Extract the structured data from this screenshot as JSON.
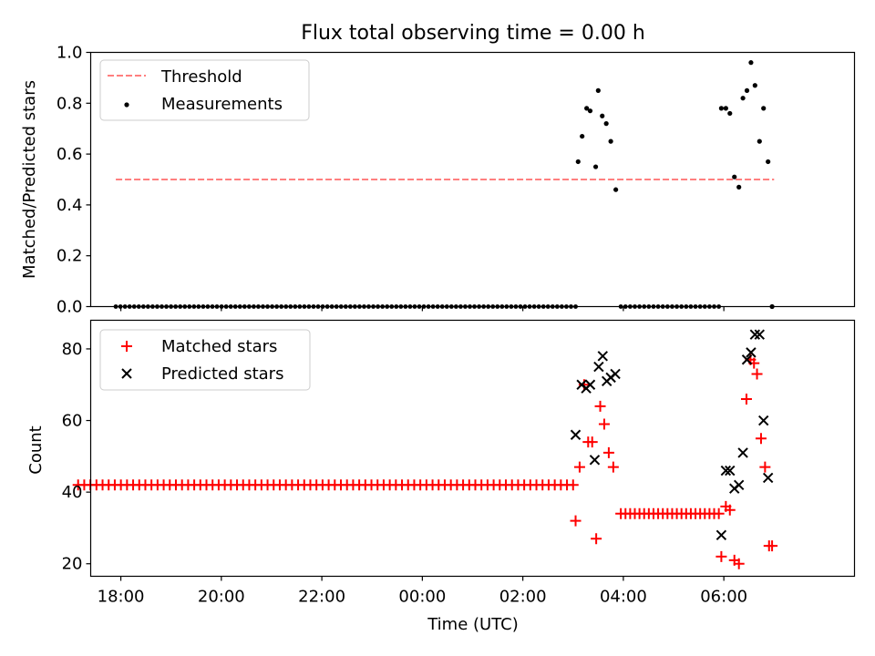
{
  "chart_data": [
    {
      "type": "scatter",
      "title": "Flux total observing time = 0.00 h",
      "xlabel": "",
      "ylabel": "Matched/Predicted stars",
      "xlim": [
        -6.6,
        8.6
      ],
      "ylim": [
        0.0,
        1.0
      ],
      "yticks": [
        "0.0",
        "0.2",
        "0.4",
        "0.6",
        "0.8",
        "1.0"
      ],
      "legend_position": "top-left",
      "legend": {
        "threshold": "Threshold",
        "measurements": "Measurements"
      },
      "threshold": {
        "value": 0.5,
        "x": [
          -6.1,
          7.0
        ],
        "color": "#ff7f7f"
      },
      "measurements": {
        "color": "#000000",
        "zero_runs": [
          {
            "x_start": -6.1,
            "x_end": 3.05,
            "count": 101
          },
          {
            "x_start": 3.95,
            "x_end": 5.9,
            "count": 22
          }
        ],
        "points": [
          {
            "x": 3.1,
            "y": 0.57
          },
          {
            "x": 3.18,
            "y": 0.67
          },
          {
            "x": 3.27,
            "y": 0.78
          },
          {
            "x": 3.34,
            "y": 0.77
          },
          {
            "x": 3.45,
            "y": 0.55
          },
          {
            "x": 3.5,
            "y": 0.85
          },
          {
            "x": 3.58,
            "y": 0.75
          },
          {
            "x": 3.66,
            "y": 0.72
          },
          {
            "x": 3.75,
            "y": 0.65
          },
          {
            "x": 3.85,
            "y": 0.46
          },
          {
            "x": 5.95,
            "y": 0.78
          },
          {
            "x": 6.04,
            "y": 0.78
          },
          {
            "x": 6.12,
            "y": 0.76
          },
          {
            "x": 6.21,
            "y": 0.51
          },
          {
            "x": 6.3,
            "y": 0.47
          },
          {
            "x": 6.38,
            "y": 0.82
          },
          {
            "x": 6.46,
            "y": 0.85
          },
          {
            "x": 6.54,
            "y": 0.96
          },
          {
            "x": 6.62,
            "y": 0.87
          },
          {
            "x": 6.71,
            "y": 0.65
          },
          {
            "x": 6.79,
            "y": 0.78
          },
          {
            "x": 6.88,
            "y": 0.57
          },
          {
            "x": 6.96,
            "y": 0.0
          }
        ]
      }
    },
    {
      "type": "scatter",
      "title": "",
      "xlabel": "Time (UTC)",
      "ylabel": "Count",
      "xlim": [
        -6.6,
        8.6
      ],
      "ylim": [
        16.5,
        88.0
      ],
      "yticks": [
        "20",
        "40",
        "60",
        "80"
      ],
      "xticks": [
        {
          "x": -6.0,
          "label": "18:00"
        },
        {
          "x": -4.0,
          "label": "20:00"
        },
        {
          "x": -2.0,
          "label": "22:00"
        },
        {
          "x": 0.0,
          "label": "00:00"
        },
        {
          "x": 2.0,
          "label": "02:00"
        },
        {
          "x": 4.0,
          "label": "04:00"
        },
        {
          "x": 6.0,
          "label": "06:00"
        }
      ],
      "legend_position": "top-left",
      "series": [
        {
          "name": "Matched stars",
          "marker": "plus",
          "color": "#ff0000",
          "runs": [
            {
              "x_start": -6.85,
              "x_end": 3.0,
              "count": 82,
              "y": 42
            },
            {
              "x_start": 3.95,
              "x_end": 5.9,
              "count": 22,
              "y": 34
            }
          ],
          "points": [
            {
              "x": 3.05,
              "y": 32
            },
            {
              "x": 3.13,
              "y": 47
            },
            {
              "x": 3.22,
              "y": 70
            },
            {
              "x": 3.3,
              "y": 54
            },
            {
              "x": 3.38,
              "y": 54
            },
            {
              "x": 3.46,
              "y": 27
            },
            {
              "x": 3.54,
              "y": 64
            },
            {
              "x": 3.62,
              "y": 59
            },
            {
              "x": 3.71,
              "y": 51
            },
            {
              "x": 3.8,
              "y": 47
            },
            {
              "x": 5.95,
              "y": 22
            },
            {
              "x": 6.04,
              "y": 36
            },
            {
              "x": 6.12,
              "y": 35
            },
            {
              "x": 6.21,
              "y": 21
            },
            {
              "x": 6.3,
              "y": 20
            },
            {
              "x": 6.45,
              "y": 66
            },
            {
              "x": 6.53,
              "y": 77
            },
            {
              "x": 6.6,
              "y": 76
            },
            {
              "x": 6.66,
              "y": 73
            },
            {
              "x": 6.74,
              "y": 55
            },
            {
              "x": 6.82,
              "y": 47
            },
            {
              "x": 6.9,
              "y": 25
            },
            {
              "x": 6.96,
              "y": 25
            }
          ]
        },
        {
          "name": "Predicted stars",
          "marker": "x",
          "color": "#000000",
          "points": [
            {
              "x": 3.05,
              "y": 56
            },
            {
              "x": 3.17,
              "y": 70
            },
            {
              "x": 3.26,
              "y": 69
            },
            {
              "x": 3.34,
              "y": 70
            },
            {
              "x": 3.43,
              "y": 49
            },
            {
              "x": 3.51,
              "y": 75
            },
            {
              "x": 3.59,
              "y": 78
            },
            {
              "x": 3.67,
              "y": 71
            },
            {
              "x": 3.75,
              "y": 72
            },
            {
              "x": 3.84,
              "y": 73
            },
            {
              "x": 5.95,
              "y": 28
            },
            {
              "x": 6.04,
              "y": 46
            },
            {
              "x": 6.12,
              "y": 46
            },
            {
              "x": 6.21,
              "y": 41
            },
            {
              "x": 6.3,
              "y": 42
            },
            {
              "x": 6.38,
              "y": 51
            },
            {
              "x": 6.46,
              "y": 77
            },
            {
              "x": 6.54,
              "y": 79
            },
            {
              "x": 6.62,
              "y": 84
            },
            {
              "x": 6.71,
              "y": 84
            },
            {
              "x": 6.79,
              "y": 60
            },
            {
              "x": 6.88,
              "y": 44
            }
          ]
        }
      ]
    }
  ]
}
